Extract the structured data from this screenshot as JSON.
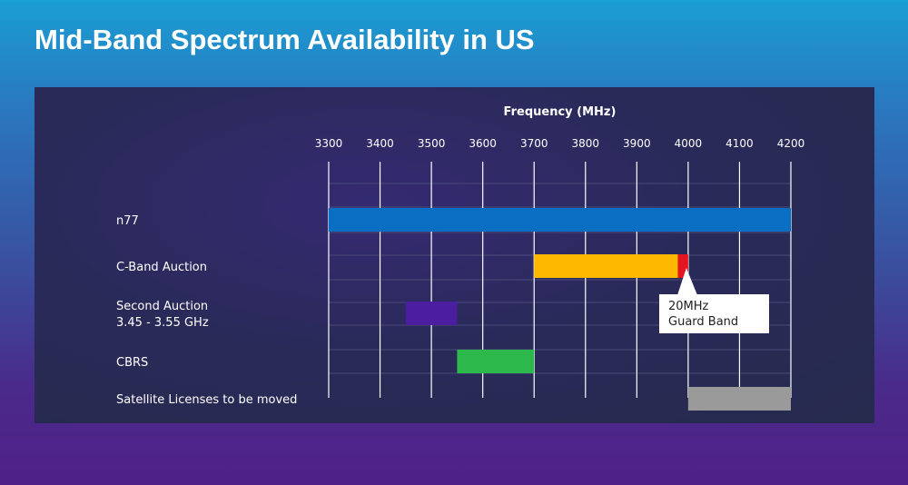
{
  "slide": {
    "title": "Mid-Band Spectrum Availability in US"
  },
  "chart_data": {
    "type": "bar",
    "orientation": "horizontal-range",
    "title": "Frequency (MHz)",
    "xlabel": "Frequency (MHz)",
    "xlim": [
      3300,
      4200
    ],
    "xticks": [
      3300,
      3400,
      3500,
      3600,
      3700,
      3800,
      3900,
      4000,
      4100,
      4200
    ],
    "grid": true,
    "rows": [
      {
        "label_lines": [
          "n77"
        ],
        "start": 3300,
        "end": 4200,
        "color": "#0a6fc2"
      },
      {
        "label_lines": [
          "C-Band Auction"
        ],
        "start": 3700,
        "end": 3980,
        "color": "#ffb800"
      },
      {
        "label_lines": [
          "Second Auction",
          "3.45 - 3.55 GHz"
        ],
        "start": 3450,
        "end": 3550,
        "color": "#4b1ea0"
      },
      {
        "label_lines": [
          "CBRS"
        ],
        "start": 3550,
        "end": 3700,
        "color": "#2db84b"
      },
      {
        "label_lines": [
          "Satellite Licenses to be moved"
        ],
        "start": 4000,
        "end": 4200,
        "color": "#9a9a9a"
      }
    ],
    "guard_band": {
      "start": 3980,
      "end": 4000,
      "color": "#e4151e"
    },
    "annotation": {
      "lines": [
        "20MHz",
        "Guard Band"
      ]
    }
  }
}
